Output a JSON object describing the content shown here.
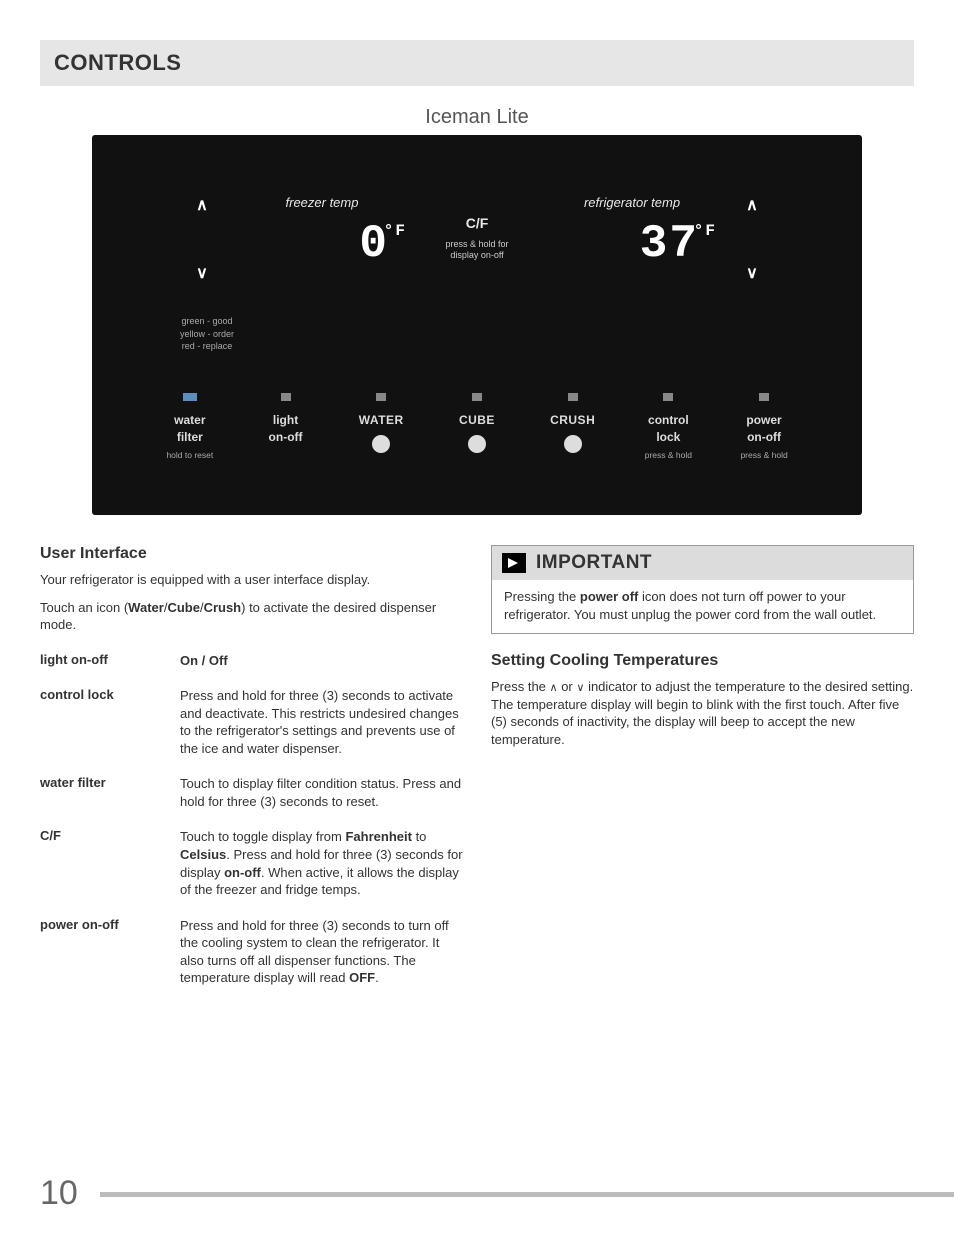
{
  "header": {
    "title": "CONTROLS"
  },
  "diagram_title": "Iceman Lite",
  "panel": {
    "bg_color": "#111111",
    "text_color": "#e8e8e8",
    "freezer": {
      "label": "freezer temp",
      "value": "0",
      "unit": "°F"
    },
    "fridge": {
      "label": "refrigerator temp",
      "value": "37",
      "unit": "°F"
    },
    "cf": {
      "big": "C/F",
      "small1": "press & hold for",
      "small2": "display on-off"
    },
    "arrow_up": "∧",
    "arrow_down": "∨",
    "legend": {
      "l1": "green - good",
      "l2": "yellow - order",
      "l3": "red - replace"
    },
    "buttons": [
      {
        "label1": "water",
        "label2": "filter",
        "sub": "hold to reset",
        "shape": "sq-blue"
      },
      {
        "label1": "light",
        "label2": "on-off",
        "sub": "",
        "shape": "sq"
      },
      {
        "caps": "WATER",
        "shape": "sq",
        "circle": true
      },
      {
        "caps": "CUBE",
        "shape": "sq",
        "circle": true
      },
      {
        "caps": "CRUSH",
        "shape": "sq",
        "circle": true
      },
      {
        "label1": "control",
        "label2": "lock",
        "sub": "press & hold",
        "shape": "sq"
      },
      {
        "label1": "power",
        "label2": "on-off",
        "sub": "press & hold",
        "shape": "sq"
      }
    ]
  },
  "left": {
    "h2": "User Interface",
    "p1": "Your refrigerator is equipped with a user interface display.",
    "p2_a": "Touch an icon (",
    "p2_b": "Water",
    "p2_c": "/",
    "p2_d": "Cube",
    "p2_e": "/",
    "p2_f": "Crush",
    "p2_g": ") to activate the desired dispenser mode.",
    "defs": [
      {
        "term": "light on-off",
        "desc": "On / Off",
        "bold_desc": true
      },
      {
        "term": "control lock",
        "desc": "Press and hold for three (3) seconds to activate and deactivate.  This restricts undesired changes to the refrigerator's settings and prevents use of the ice and water dispenser."
      },
      {
        "term": "water filter",
        "desc": "Touch to display filter condition status.  Press and hold for three (3) seconds to reset."
      },
      {
        "term": "C/F",
        "desc_parts": [
          "Touch to toggle display from ",
          "Fahrenheit",
          " to ",
          "Celsius",
          ".  Press and hold for three (3) seconds for display ",
          "on-off",
          ".  When active, it allows the display of the freezer and fridge temps."
        ]
      },
      {
        "term": "power on-off",
        "desc_parts": [
          "Press and hold for three (3) seconds to turn off the cooling system to clean the refrigerator.  It also turns off all dispenser functions. The temperature display will read ",
          "OFF",
          "."
        ]
      }
    ]
  },
  "right": {
    "imp_title": "IMPORTANT",
    "imp_body_a": "Pressing the ",
    "imp_body_b": "power off",
    "imp_body_c": " icon does not turn off power to your refrigerator. You must unplug the power cord from the wall outlet.",
    "h2": "Setting Cooling Temperatures",
    "p_a": "Press the ",
    "p_up": "∧",
    "p_b": " or ",
    "p_dn": "∨",
    "p_c": " indicator to adjust the temperature to the desired setting.  The temperature display will begin to blink with the first touch.  After five (5) seconds of inactivity, the display will beep to accept the new temperature."
  },
  "page_number": "10"
}
